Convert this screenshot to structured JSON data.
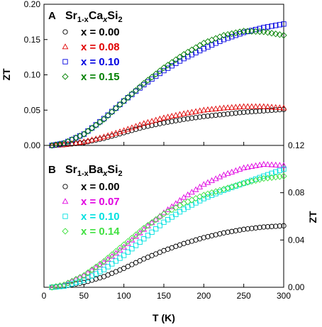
{
  "chart_data": [
    {
      "type": "scatter",
      "panel_label": "A",
      "title": {
        "a": "Sr",
        "b": "1-x",
        "c": "Ca",
        "d": "x",
        "e": "Si",
        "f": "2"
      },
      "ylabel": "ZT",
      "ylim": [
        0,
        0.2
      ],
      "yticks": [
        "0.00",
        "0.05",
        "0.10",
        "0.15",
        "0.20"
      ],
      "y_axis_side": "left",
      "xlim": [
        0,
        300
      ],
      "legend_position": "top-left",
      "series": [
        {
          "name": "x = 0.00",
          "color": "#000000",
          "marker": "circle",
          "x": [
            10,
            25,
            50,
            75,
            100,
            125,
            150,
            175,
            200,
            225,
            250,
            275,
            300
          ],
          "y": [
            0.0,
            0.001,
            0.004,
            0.01,
            0.018,
            0.026,
            0.032,
            0.037,
            0.041,
            0.044,
            0.047,
            0.049,
            0.051
          ]
        },
        {
          "name": "x = 0.08",
          "color": "#e00000",
          "marker": "triangle",
          "x": [
            10,
            25,
            50,
            75,
            100,
            125,
            150,
            175,
            200,
            225,
            250,
            275,
            300
          ],
          "y": [
            0.0,
            0.001,
            0.005,
            0.012,
            0.021,
            0.031,
            0.039,
            0.045,
            0.05,
            0.053,
            0.055,
            0.055,
            0.053
          ]
        },
        {
          "name": "x = 0.10",
          "color": "#0000e0",
          "marker": "square",
          "x": [
            10,
            25,
            50,
            75,
            100,
            125,
            150,
            175,
            200,
            225,
            250,
            275,
            300
          ],
          "y": [
            0.0,
            0.003,
            0.016,
            0.038,
            0.063,
            0.086,
            0.106,
            0.123,
            0.137,
            0.15,
            0.16,
            0.167,
            0.172
          ]
        },
        {
          "name": "x = 0.15",
          "color": "#008000",
          "marker": "diamond",
          "x": [
            10,
            25,
            50,
            75,
            100,
            125,
            150,
            175,
            200,
            225,
            250,
            275,
            300
          ],
          "y": [
            0.0,
            0.003,
            0.016,
            0.037,
            0.063,
            0.088,
            0.11,
            0.129,
            0.145,
            0.156,
            0.162,
            0.161,
            0.156
          ]
        }
      ]
    },
    {
      "type": "scatter",
      "panel_label": "B",
      "title": {
        "a": "Sr",
        "b": "1-x",
        "c": "Ba",
        "d": "x",
        "e": "Si",
        "f": "2"
      },
      "ylabel": "ZT",
      "ylim": [
        0,
        0.12
      ],
      "yticks": [
        "0.00",
        "0.04",
        "0.08",
        "0.12"
      ],
      "y_axis_side": "right",
      "xlabel": "T (K)",
      "xlim": [
        0,
        300
      ],
      "xticks": [
        "0",
        "50",
        "100",
        "150",
        "200",
        "250",
        "300"
      ],
      "legend_position": "top-left",
      "series": [
        {
          "name": "x = 0.00",
          "color": "#000000",
          "marker": "circle",
          "x": [
            10,
            25,
            50,
            75,
            100,
            125,
            150,
            175,
            200,
            225,
            250,
            275,
            300
          ],
          "y": [
            0.0,
            0.001,
            0.004,
            0.009,
            0.016,
            0.024,
            0.031,
            0.037,
            0.042,
            0.046,
            0.049,
            0.051,
            0.052
          ]
        },
        {
          "name": "x = 0.07",
          "color": "#e000e0",
          "marker": "triangle",
          "x": [
            10,
            25,
            50,
            75,
            100,
            125,
            150,
            175,
            200,
            225,
            250,
            275,
            300
          ],
          "y": [
            0.0,
            0.002,
            0.01,
            0.021,
            0.034,
            0.049,
            0.063,
            0.076,
            0.087,
            0.095,
            0.101,
            0.104,
            0.103
          ]
        },
        {
          "name": "x = 0.10",
          "color": "#00e0e0",
          "marker": "square",
          "x": [
            10,
            25,
            50,
            75,
            100,
            125,
            150,
            175,
            200,
            225,
            250,
            275,
            300
          ],
          "y": [
            0.0,
            0.001,
            0.006,
            0.015,
            0.027,
            0.041,
            0.055,
            0.066,
            0.075,
            0.082,
            0.088,
            0.094,
            0.1
          ]
        },
        {
          "name": "x = 0.14",
          "color": "#40e040",
          "marker": "diamond",
          "x": [
            10,
            25,
            50,
            75,
            100,
            125,
            150,
            175,
            200,
            225,
            250,
            275,
            300
          ],
          "y": [
            0.0,
            0.002,
            0.01,
            0.022,
            0.036,
            0.05,
            0.062,
            0.071,
            0.078,
            0.083,
            0.088,
            0.092,
            0.094
          ]
        }
      ]
    }
  ]
}
